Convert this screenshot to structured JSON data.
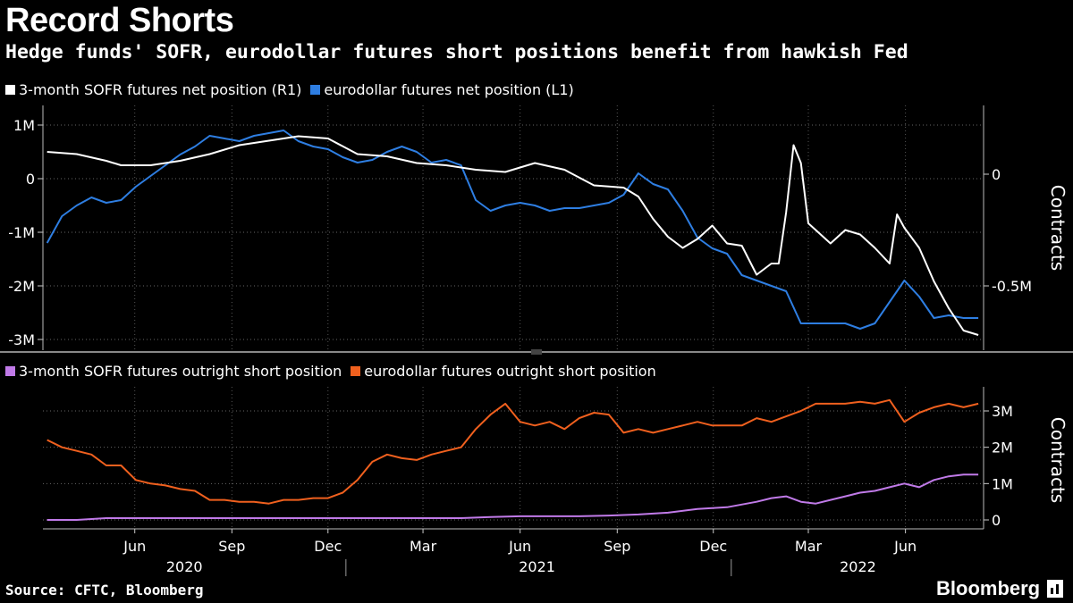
{
  "title": "Record Shorts",
  "subtitle": "Hedge funds' SOFR, eurodollar futures short positions benefit from hawkish Fed",
  "source": "Source: CFTC, Bloomberg",
  "logo": "Bloomberg",
  "colors": {
    "sofr_net": "#ffffff",
    "ed_net": "#2e7ee2",
    "sofr_short": "#c07ae8",
    "ed_short": "#f0601e"
  },
  "chart_data": [
    {
      "type": "line",
      "panel": "top",
      "legend": [
        "3-month SOFR futures net position (R1)",
        "eurodollar futures net position (L1)"
      ],
      "left_ticks": [
        "1M",
        "0",
        "-1M",
        "-2M",
        "-3M"
      ],
      "left_tick_values": [
        1000000,
        0,
        -1000000,
        -2000000,
        -3000000
      ],
      "right_ticks": [
        "0",
        "-0.5M"
      ],
      "right_tick_values": [
        0,
        -500000
      ],
      "right_label": "Contracts",
      "left_ylim": [
        -3000000,
        1000000
      ],
      "right_ylim": [
        -750000,
        150000
      ],
      "series": [
        {
          "name": "eurodollar futures net position (L1)",
          "axis": "left",
          "color": "#2e7ee2",
          "x": [
            "2020-03-24",
            "2020-04-07",
            "2020-04-21",
            "2020-05-05",
            "2020-05-19",
            "2020-06-02",
            "2020-06-16",
            "2020-06-30",
            "2020-07-14",
            "2020-07-28",
            "2020-08-11",
            "2020-08-25",
            "2020-09-08",
            "2020-09-22",
            "2020-10-06",
            "2020-10-20",
            "2020-11-03",
            "2020-11-17",
            "2020-12-01",
            "2020-12-15",
            "2020-12-29",
            "2021-01-12",
            "2021-01-26",
            "2021-02-09",
            "2021-02-23",
            "2021-03-09",
            "2021-03-23",
            "2021-04-06",
            "2021-04-20",
            "2021-05-04",
            "2021-05-18",
            "2021-06-01",
            "2021-06-15",
            "2021-06-29",
            "2021-07-13",
            "2021-07-27",
            "2021-08-10",
            "2021-08-24",
            "2021-09-07",
            "2021-09-21",
            "2021-10-05",
            "2021-10-19",
            "2021-11-02",
            "2021-11-16",
            "2021-11-30",
            "2021-12-14",
            "2021-12-28",
            "2022-01-11",
            "2022-01-25",
            "2022-02-08",
            "2022-02-22",
            "2022-03-08",
            "2022-03-22",
            "2022-04-05",
            "2022-04-19",
            "2022-05-03",
            "2022-05-17",
            "2022-05-31",
            "2022-06-14",
            "2022-06-28",
            "2022-07-12",
            "2022-07-26",
            "2022-08-09",
            "2022-08-23"
          ],
          "values": [
            -1200000,
            -700000,
            -500000,
            -350000,
            -450000,
            -400000,
            -150000,
            50000,
            250000,
            450000,
            600000,
            800000,
            750000,
            700000,
            800000,
            850000,
            900000,
            700000,
            600000,
            550000,
            400000,
            300000,
            350000,
            500000,
            600000,
            500000,
            300000,
            350000,
            250000,
            -400000,
            -600000,
            -500000,
            -450000,
            -500000,
            -600000,
            -550000,
            -550000,
            -500000,
            -450000,
            -300000,
            100000,
            -100000,
            -200000,
            -600000,
            -1100000,
            -1300000,
            -1400000,
            -1800000,
            -1900000,
            -2000000,
            -2100000,
            -2700000,
            -2700000,
            -2700000,
            -2700000,
            -2800000,
            -2700000,
            -2300000,
            -1900000,
            -2200000,
            -2600000,
            -2550000,
            -2600000,
            -2600000
          ]
        },
        {
          "name": "3-month SOFR futures net position (R1)",
          "axis": "right",
          "color": "#ffffff",
          "x": [
            "2020-03-24",
            "2020-04-21",
            "2020-05-19",
            "2020-06-02",
            "2020-06-30",
            "2020-07-28",
            "2020-08-25",
            "2020-09-22",
            "2020-10-20",
            "2020-11-17",
            "2020-12-15",
            "2021-01-12",
            "2021-02-09",
            "2021-03-09",
            "2021-04-06",
            "2021-05-04",
            "2021-06-01",
            "2021-06-29",
            "2021-07-27",
            "2021-08-24",
            "2021-09-21",
            "2021-10-05",
            "2021-10-19",
            "2021-11-02",
            "2021-11-16",
            "2021-11-30",
            "2021-12-14",
            "2021-12-28",
            "2022-01-11",
            "2022-01-25",
            "2022-02-08",
            "2022-02-15",
            "2022-02-22",
            "2022-03-01",
            "2022-03-08",
            "2022-03-15",
            "2022-03-22",
            "2022-04-05",
            "2022-04-19",
            "2022-05-03",
            "2022-05-17",
            "2022-05-31",
            "2022-06-07",
            "2022-06-14",
            "2022-06-28",
            "2022-07-12",
            "2022-07-26",
            "2022-08-09",
            "2022-08-23"
          ],
          "values": [
            100000,
            90000,
            60000,
            40000,
            40000,
            60000,
            90000,
            130000,
            150000,
            170000,
            160000,
            90000,
            80000,
            50000,
            40000,
            20000,
            10000,
            50000,
            20000,
            -50000,
            -60000,
            -100000,
            -200000,
            -280000,
            -330000,
            -290000,
            -230000,
            -310000,
            -320000,
            -450000,
            -400000,
            -400000,
            -170000,
            130000,
            50000,
            -220000,
            -250000,
            -310000,
            -250000,
            -270000,
            -330000,
            -400000,
            -180000,
            -240000,
            -330000,
            -480000,
            -600000,
            -700000,
            -720000
          ]
        }
      ]
    },
    {
      "type": "line",
      "panel": "bottom",
      "legend": [
        "3-month SOFR futures outright short position",
        "eurodollar futures outright short position"
      ],
      "right_ticks": [
        "3M",
        "2M",
        "1M",
        "0"
      ],
      "right_tick_values": [
        3000000,
        2000000,
        1000000,
        0
      ],
      "right_label": "Contracts",
      "ylim": [
        0,
        3500000
      ],
      "x_ticks": [
        "Jun",
        "Sep",
        "Dec",
        "Mar",
        "Jun",
        "Sep",
        "Dec",
        "Mar",
        "Jun"
      ],
      "x_tick_dates": [
        "2020-06-15",
        "2020-09-15",
        "2020-12-15",
        "2021-03-15",
        "2021-06-15",
        "2021-09-15",
        "2021-12-15",
        "2022-03-15",
        "2022-06-15"
      ],
      "years": [
        "2020",
        "2021",
        "2022"
      ],
      "year_dates": [
        "2020-08-01",
        "2021-07-01",
        "2022-05-01"
      ],
      "year_separators": [
        "2021-01-01",
        "2022-01-01"
      ],
      "series": [
        {
          "name": "eurodollar futures outright short position",
          "axis": "right",
          "color": "#f0601e",
          "x": [
            "2020-03-24",
            "2020-04-07",
            "2020-04-21",
            "2020-05-05",
            "2020-05-19",
            "2020-06-02",
            "2020-06-16",
            "2020-06-30",
            "2020-07-14",
            "2020-07-28",
            "2020-08-11",
            "2020-08-25",
            "2020-09-08",
            "2020-09-22",
            "2020-10-06",
            "2020-10-20",
            "2020-11-03",
            "2020-11-17",
            "2020-12-01",
            "2020-12-15",
            "2020-12-29",
            "2021-01-12",
            "2021-01-26",
            "2021-02-09",
            "2021-02-23",
            "2021-03-09",
            "2021-03-23",
            "2021-04-06",
            "2021-04-20",
            "2021-05-04",
            "2021-05-18",
            "2021-06-01",
            "2021-06-15",
            "2021-06-29",
            "2021-07-13",
            "2021-07-27",
            "2021-08-10",
            "2021-08-24",
            "2021-09-07",
            "2021-09-21",
            "2021-10-05",
            "2021-10-19",
            "2021-11-02",
            "2021-11-16",
            "2021-11-30",
            "2021-12-14",
            "2021-12-28",
            "2022-01-11",
            "2022-01-25",
            "2022-02-08",
            "2022-02-22",
            "2022-03-08",
            "2022-03-22",
            "2022-04-05",
            "2022-04-19",
            "2022-05-03",
            "2022-05-17",
            "2022-05-31",
            "2022-06-14",
            "2022-06-28",
            "2022-07-12",
            "2022-07-26",
            "2022-08-09",
            "2022-08-23"
          ],
          "values": [
            2200000,
            2000000,
            1900000,
            1800000,
            1500000,
            1500000,
            1100000,
            1000000,
            950000,
            850000,
            800000,
            550000,
            550000,
            500000,
            500000,
            450000,
            550000,
            550000,
            600000,
            600000,
            750000,
            1100000,
            1600000,
            1800000,
            1700000,
            1650000,
            1800000,
            1900000,
            2000000,
            2500000,
            2900000,
            3200000,
            2700000,
            2600000,
            2700000,
            2500000,
            2800000,
            2950000,
            2900000,
            2400000,
            2500000,
            2400000,
            2500000,
            2600000,
            2700000,
            2600000,
            2600000,
            2600000,
            2800000,
            2700000,
            2850000,
            3000000,
            3200000,
            3200000,
            3200000,
            3250000,
            3200000,
            3300000,
            2700000,
            2950000,
            3100000,
            3200000,
            3100000,
            3200000
          ]
        },
        {
          "name": "3-month SOFR futures outright short position",
          "axis": "right",
          "color": "#c07ae8",
          "x": [
            "2020-03-24",
            "2020-04-21",
            "2020-05-19",
            "2020-06-16",
            "2020-07-14",
            "2020-08-11",
            "2020-09-08",
            "2020-10-06",
            "2020-11-03",
            "2020-12-01",
            "2020-12-29",
            "2021-01-26",
            "2021-02-23",
            "2021-03-23",
            "2021-04-20",
            "2021-05-18",
            "2021-06-15",
            "2021-07-13",
            "2021-08-10",
            "2021-09-07",
            "2021-10-05",
            "2021-11-02",
            "2021-11-30",
            "2021-12-28",
            "2022-01-25",
            "2022-02-08",
            "2022-02-22",
            "2022-03-08",
            "2022-03-22",
            "2022-04-05",
            "2022-04-19",
            "2022-05-03",
            "2022-05-17",
            "2022-05-31",
            "2022-06-14",
            "2022-06-28",
            "2022-07-12",
            "2022-07-26",
            "2022-08-09",
            "2022-08-23"
          ],
          "values": [
            0,
            0,
            50000,
            50000,
            50000,
            50000,
            50000,
            50000,
            50000,
            50000,
            50000,
            50000,
            50000,
            50000,
            50000,
            80000,
            100000,
            100000,
            100000,
            120000,
            150000,
            200000,
            300000,
            350000,
            500000,
            600000,
            650000,
            500000,
            450000,
            550000,
            650000,
            750000,
            800000,
            900000,
            1000000,
            900000,
            1100000,
            1200000,
            1250000,
            1250000
          ]
        }
      ]
    }
  ]
}
